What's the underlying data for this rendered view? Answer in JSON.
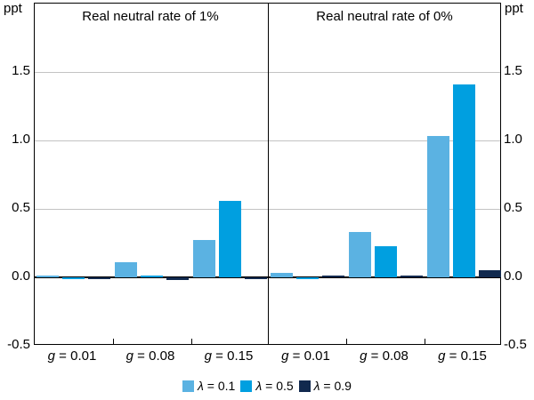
{
  "chart_data": {
    "type": "bar",
    "unit": "ppt",
    "ylim": [
      -0.5,
      2.0
    ],
    "yticks": [
      1.5,
      1.0,
      0.5,
      0.0,
      -0.5
    ],
    "ytick_labels": [
      "1.5",
      "1.0",
      "0.5",
      "0.0",
      "-0.5"
    ],
    "grid": true,
    "legend_position": "bottom",
    "categories": [
      "g = 0.01",
      "g = 0.08",
      "g = 0.15"
    ],
    "categories_display": [
      {
        "symbol": "g",
        "rest": " = 0.01"
      },
      {
        "symbol": "g",
        "rest": " = 0.08"
      },
      {
        "symbol": "g",
        "rest": " = 0.15"
      }
    ],
    "legend": [
      {
        "symbol": "λ",
        "rest": " = 0.1"
      },
      {
        "symbol": "λ",
        "rest": " = 0.5"
      },
      {
        "symbol": "λ",
        "rest": " = 0.9"
      }
    ],
    "series_names": [
      "λ = 0.1",
      "λ = 0.5",
      "λ = 0.9"
    ],
    "series_colors": [
      "#5BB2E2",
      "#009FE0",
      "#11294E"
    ],
    "panels": [
      {
        "title": "Real neutral rate of 1%",
        "series": [
          {
            "name": "λ = 0.1",
            "values": [
              0.01,
              0.11,
              0.27
            ]
          },
          {
            "name": "λ = 0.5",
            "values": [
              -0.01,
              0.01,
              0.56
            ]
          },
          {
            "name": "λ = 0.9",
            "values": [
              -0.01,
              -0.02,
              -0.01
            ]
          }
        ]
      },
      {
        "title": "Real neutral rate of 0%",
        "series": [
          {
            "name": "λ = 0.1",
            "values": [
              0.03,
              0.33,
              1.03
            ]
          },
          {
            "name": "λ = 0.5",
            "values": [
              -0.01,
              0.23,
              1.41
            ]
          },
          {
            "name": "λ = 0.9",
            "values": [
              0.01,
              0.01,
              0.05
            ]
          }
        ]
      }
    ],
    "gridline_color": "#c3c3c3",
    "axis_color": "#000000"
  }
}
